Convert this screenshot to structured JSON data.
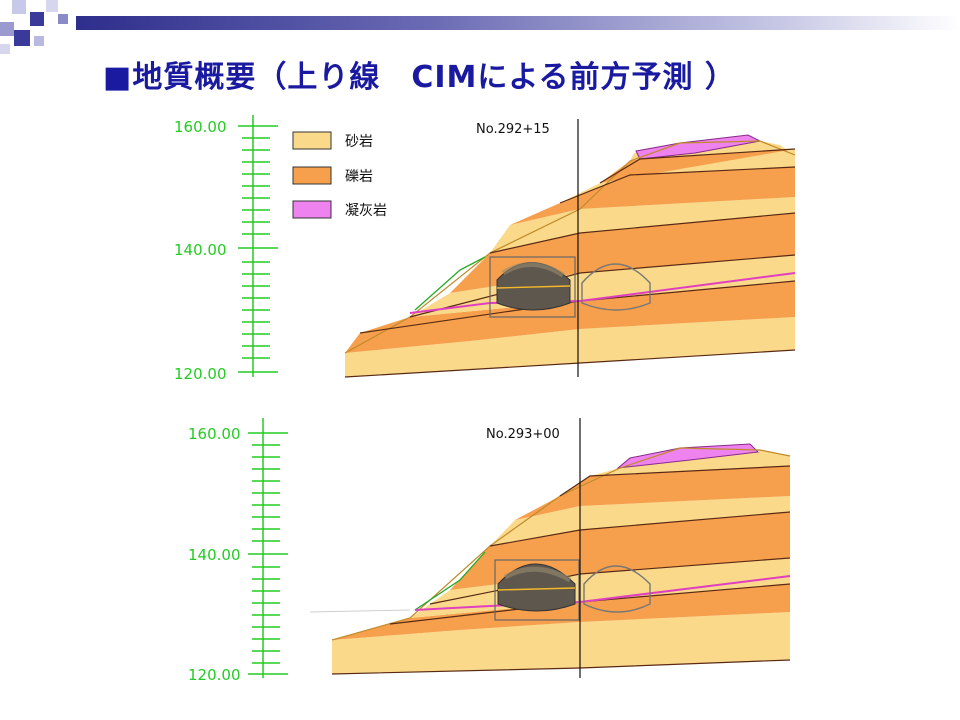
{
  "slide_title": "地質概要（上り線　CIMによる前方予測 ）",
  "title_bullet": "■",
  "legend": [
    {
      "label": "砂岩",
      "color": "#fbd98a"
    },
    {
      "label": "礫岩",
      "color": "#f6a04e"
    },
    {
      "label": "凝灰岩",
      "color": "#ee82ee"
    }
  ],
  "sections": [
    {
      "station": "No.292+15",
      "scale_labels": [
        "160.00",
        "140.00",
        "120.00"
      ]
    },
    {
      "station": "No.293+00",
      "scale_labels": [
        "160.00",
        "140.00",
        "120.00"
      ]
    }
  ],
  "colors": {
    "title": "#1a1aa0",
    "scale": "#22cc22",
    "sandstone": "#fbd98a",
    "conglomerate": "#f6a04e",
    "tuff": "#ee82ee",
    "boundary": "#5a2a14",
    "magenta_line": "#e040c0",
    "ground_line": "#22aa22"
  }
}
